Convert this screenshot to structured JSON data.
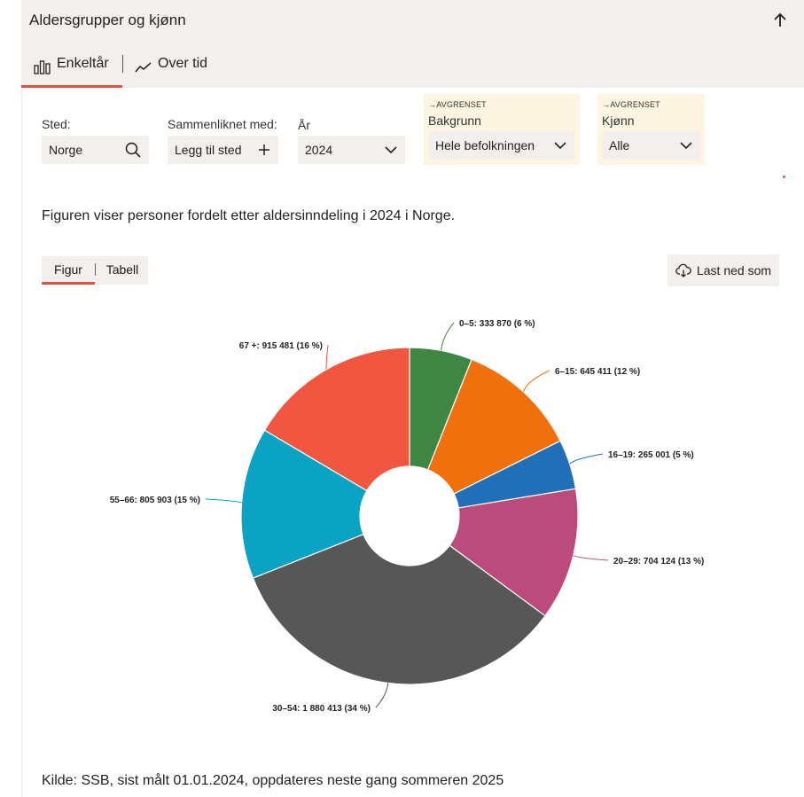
{
  "header": {
    "title": "Aldersgrupper og kjønn"
  },
  "tabs": [
    {
      "label": "Enkeltår",
      "icon": "bar-chart-icon"
    },
    {
      "label": "Over tid",
      "icon": "line-chart-icon"
    }
  ],
  "filters": {
    "sted": {
      "label": "Sted:",
      "value": "Norge",
      "icon": "search-icon"
    },
    "compare": {
      "label": "Sammenliknet med:",
      "value": "Legg til sted",
      "icon": "plus-icon"
    },
    "year": {
      "label": "År",
      "value": "2024",
      "icon": "chevron-down-icon"
    },
    "background": {
      "tag": "→AVGRENSET",
      "label": "Bakgrunn",
      "value": "Hele befolkningen",
      "icon": "chevron-down-icon"
    },
    "gender": {
      "tag": "→AVGRENSET",
      "label": "Kjønn",
      "value": "Alle",
      "icon": "chevron-down-icon"
    }
  },
  "description": "Figuren viser personer fordelt etter aldersinndeling i 2024 i Norge.",
  "view_toggle": {
    "figure": "Figur",
    "table": "Tabell"
  },
  "download": {
    "label": "Last ned som",
    "icon": "cloud-download-icon"
  },
  "colors": {
    "accent": "#e4523d",
    "panel": "#f2efec",
    "restricted": "#fdf5e2"
  },
  "chart_data": {
    "type": "pie",
    "donut": true,
    "slices": [
      {
        "label": "0–5: 333 870 (6 %)",
        "value": 333870,
        "color": "#3f8544"
      },
      {
        "label": "6–15: 645 411 (12 %)",
        "value": 645411,
        "color": "#f0700e"
      },
      {
        "label": "16–19: 265 001 (5 %)",
        "value": 265001,
        "color": "#206fb7"
      },
      {
        "label": "20–29: 704 124 (13 %)",
        "value": 704124,
        "color": "#bb4a7d"
      },
      {
        "label": "30–54: 1 880 413 (34 %)",
        "value": 1880413,
        "color": "#575757"
      },
      {
        "label": "55–66: 805 903 (15 %)",
        "value": 805903,
        "color": "#0aa3c4"
      },
      {
        "label": "67 +: 915 481 (16 %)",
        "value": 915481,
        "color": "#f15640"
      }
    ]
  },
  "source": "Kilde: SSB, sist målt 01.01.2024, oppdateres neste gang sommeren 2025"
}
